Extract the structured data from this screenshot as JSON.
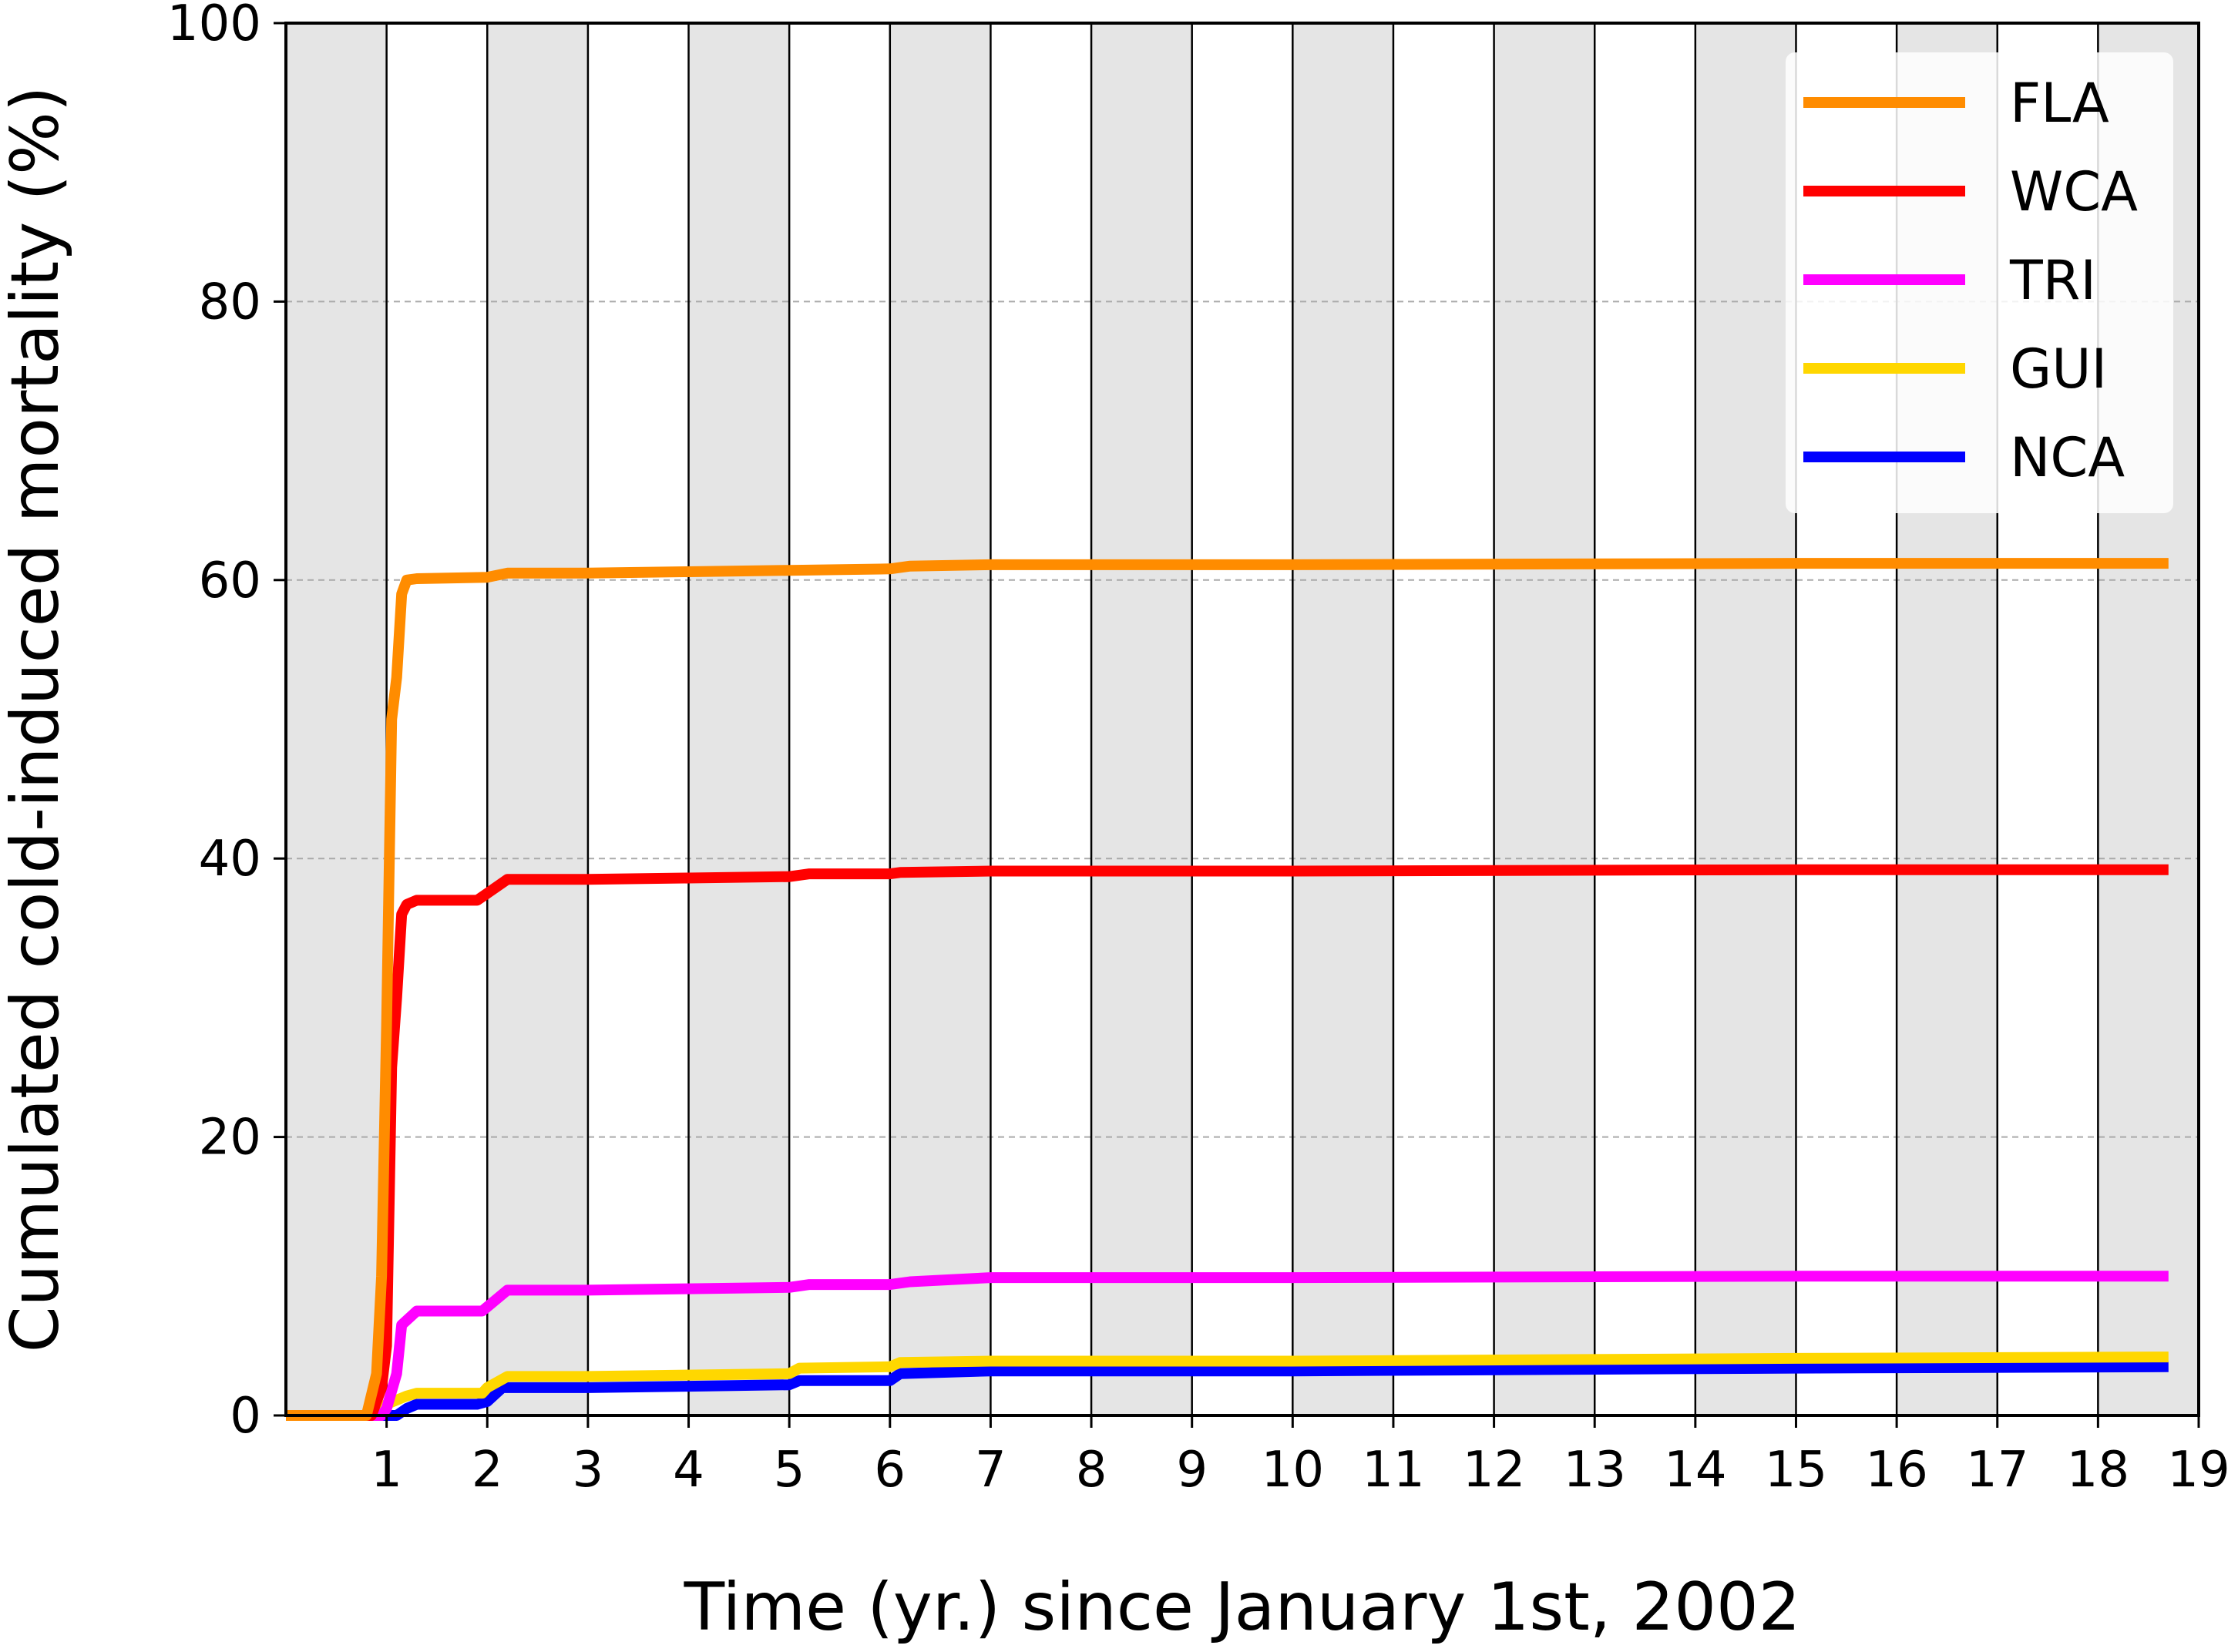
{
  "chart_data": {
    "type": "line",
    "title": "",
    "xlabel": "Time (yr.) since January 1st, 2002",
    "ylabel": "Cumulated cold-induced mortality (%)",
    "xlim": [
      0,
      19
    ],
    "ylim": [
      0,
      100
    ],
    "xticks": [
      "1",
      "2",
      "3",
      "4",
      "5",
      "6",
      "7",
      "8",
      "9",
      "10",
      "11",
      "12",
      "13",
      "14",
      "15",
      "16",
      "17",
      "18",
      "19"
    ],
    "yticks": [
      "0",
      "20",
      "40",
      "60",
      "80",
      "100"
    ],
    "grid": "horizontal dashed at 20, 40, 60, 80",
    "background": "alternating grey/white yearly bands",
    "legend_position": "top-right",
    "series": [
      {
        "name": "FLA",
        "color": "#ff8c00",
        "x": [
          0,
          0.8,
          0.9,
          0.95,
          1.0,
          1.05,
          1.1,
          1.15,
          1.2,
          1.3,
          2.0,
          2.2,
          3,
          4,
          5,
          6,
          6.2,
          7,
          10,
          15,
          18.7
        ],
        "y": [
          0,
          0,
          3,
          10,
          28,
          50,
          53,
          59,
          60,
          60.1,
          60.2,
          60.5,
          60.5,
          60.6,
          60.7,
          60.8,
          61.0,
          61.1,
          61.1,
          61.2,
          61.2
        ]
      },
      {
        "name": "WCA",
        "color": "#ff0000",
        "x": [
          0,
          0.85,
          0.95,
          1.0,
          1.05,
          1.1,
          1.15,
          1.2,
          1.3,
          1.9,
          2.0,
          2.2,
          3,
          4,
          5,
          5.2,
          6,
          6.1,
          7,
          10,
          15,
          18.7
        ],
        "y": [
          0,
          0,
          2,
          5,
          25,
          30,
          36,
          36.7,
          37,
          37,
          37.5,
          38.5,
          38.5,
          38.6,
          38.7,
          38.9,
          38.9,
          39.0,
          39.1,
          39.1,
          39.2,
          39.2
        ]
      },
      {
        "name": "TRI",
        "color": "#ff00ff",
        "x": [
          0,
          0.95,
          1.0,
          1.1,
          1.15,
          1.3,
          1.95,
          2.0,
          2.2,
          3,
          4,
          5,
          5.2,
          6,
          6.2,
          7,
          10,
          15,
          18.7
        ],
        "y": [
          0,
          0,
          0.5,
          3,
          6.5,
          7.5,
          7.5,
          7.8,
          9.0,
          9.0,
          9.1,
          9.2,
          9.4,
          9.4,
          9.6,
          9.9,
          9.9,
          10.0,
          10.0
        ]
      },
      {
        "name": "GUI",
        "color": "#ffd700",
        "x": [
          0,
          0.9,
          1.0,
          1.2,
          1.3,
          1.95,
          2.0,
          2.2,
          3,
          4,
          5,
          5.1,
          6,
          6.1,
          7,
          10,
          15,
          18.7
        ],
        "y": [
          0,
          0,
          0.8,
          1.4,
          1.6,
          1.6,
          2.0,
          2.8,
          2.8,
          2.9,
          3.0,
          3.4,
          3.5,
          3.8,
          3.9,
          3.9,
          4.1,
          4.2
        ]
      },
      {
        "name": "NCA",
        "color": "#0000ff",
        "x": [
          0,
          1.1,
          1.2,
          1.3,
          1.9,
          2.0,
          2.15,
          3,
          4,
          5,
          5.1,
          6,
          6.1,
          7,
          10,
          15,
          18.7
        ],
        "y": [
          0,
          0,
          0.5,
          0.8,
          0.8,
          1.0,
          2.0,
          2.0,
          2.1,
          2.2,
          2.5,
          2.5,
          3.0,
          3.2,
          3.2,
          3.4,
          3.5
        ]
      }
    ]
  }
}
